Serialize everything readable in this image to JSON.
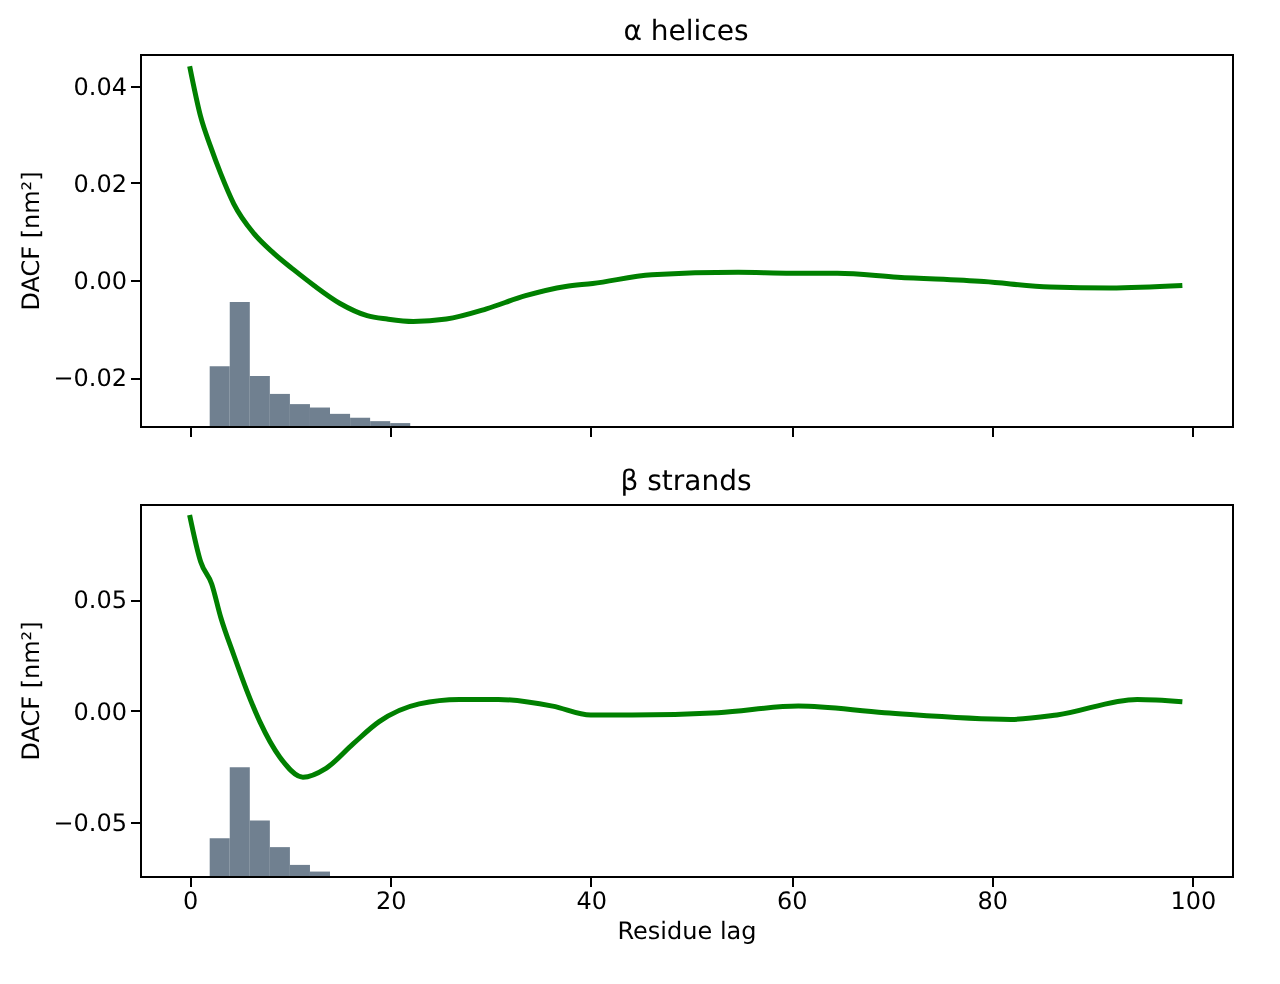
{
  "chart_data": [
    {
      "type": "line",
      "title": "α helices",
      "ylabel": "DACF [nm²]",
      "xlim": [
        -4.95,
        103.95
      ],
      "xticks": [
        0,
        20,
        40,
        60,
        80,
        100
      ],
      "ylim": [
        -0.03,
        0.0465
      ],
      "yticks": [
        -0.02,
        {
          "value": 0,
          "label": "0.00"
        },
        0.02,
        0.04
      ],
      "tick_labels": "y",
      "grid": false,
      "series": [
        {
          "color": "#008000",
          "x": [
            0,
            1.1,
            2.1,
            3.1,
            4.4,
            6.4,
            8.4,
            10.4,
            12.4,
            15.0,
            17.7,
            19.7,
            22.3,
            25.6,
            29.6,
            33.5,
            37.5,
            40.2,
            46.1,
            54.7,
            60,
            64.6,
            70.6,
            79.2,
            85.8,
            91.8,
            99
          ],
          "values": [
            0.044,
            0.0336,
            0.0274,
            0.0219,
            0.0157,
            0.0096,
            0.0055,
            0.0021,
            -0.0011,
            -0.0048,
            -0.0073,
            -0.008,
            -0.0085,
            -0.008,
            -0.0059,
            -0.0032,
            -0.0013,
            -0.0007,
            0.0011,
            0.0016,
            0.0014,
            0.0014,
            0.0006,
            -0.0003,
            -0.0014,
            -0.0016,
            -0.0011
          ]
        },
        {
          "type": "histogram",
          "color": "#708090",
          "bins": [
            2,
            4,
            6,
            8,
            10,
            12,
            14,
            16,
            18,
            20,
            22
          ],
          "base": [
            -0.03,
            -0.03,
            -0.03,
            -0.03,
            -0.03,
            -0.03,
            -0.03,
            -0.03,
            -0.03,
            -0.03
          ],
          "values": [
            0.0123,
            0.0255,
            0.0103,
            0.0066,
            0.0045,
            0.0038,
            0.0025,
            0.0017,
            0.001,
            0.0006
          ]
        }
      ]
    },
    {
      "type": "line",
      "title": "β strands",
      "xlabel": "Residue lag",
      "ylabel": "DACF [nm²]",
      "xlim": [
        -4.95,
        103.95
      ],
      "xticks": [
        0,
        20,
        40,
        60,
        80,
        100
      ],
      "ylim": [
        -0.0745,
        0.093
      ],
      "yticks": [
        -0.05,
        {
          "value": 0,
          "label": "0.00"
        },
        0.05
      ],
      "grid": false,
      "series": [
        {
          "color": "#008000",
          "x": [
            0,
            1.1,
            2.2,
            3.1,
            4.4,
            5.7,
            7.0,
            9.0,
            11.3,
            13.6,
            16.3,
            18.9,
            22.9,
            26.9,
            30.8,
            36.2,
            40,
            44.1,
            52.7,
            60.7,
            69.3,
            81.9,
            86.5,
            94.5,
            99
          ],
          "values": [
            0.088,
            0.067,
            0.057,
            0.042,
            0.025,
            0.009,
            -0.005,
            -0.021,
            -0.03,
            -0.026,
            -0.015,
            -0.005,
            0.003,
            0.005,
            0.005,
            0.002,
            -0.002,
            -0.002,
            -0.001,
            0.002,
            -0.001,
            -0.004,
            -0.002,
            0.005,
            0.004
          ]
        },
        {
          "type": "histogram",
          "color": "#708090",
          "bins": [
            2,
            4,
            6,
            8,
            10,
            12,
            14
          ],
          "base": [
            -0.0745,
            -0.0745,
            -0.0745,
            -0.0745,
            -0.0745,
            -0.0745
          ],
          "values": [
            0.017,
            0.049,
            0.025,
            0.013,
            0.005,
            0.002
          ]
        }
      ]
    }
  ]
}
